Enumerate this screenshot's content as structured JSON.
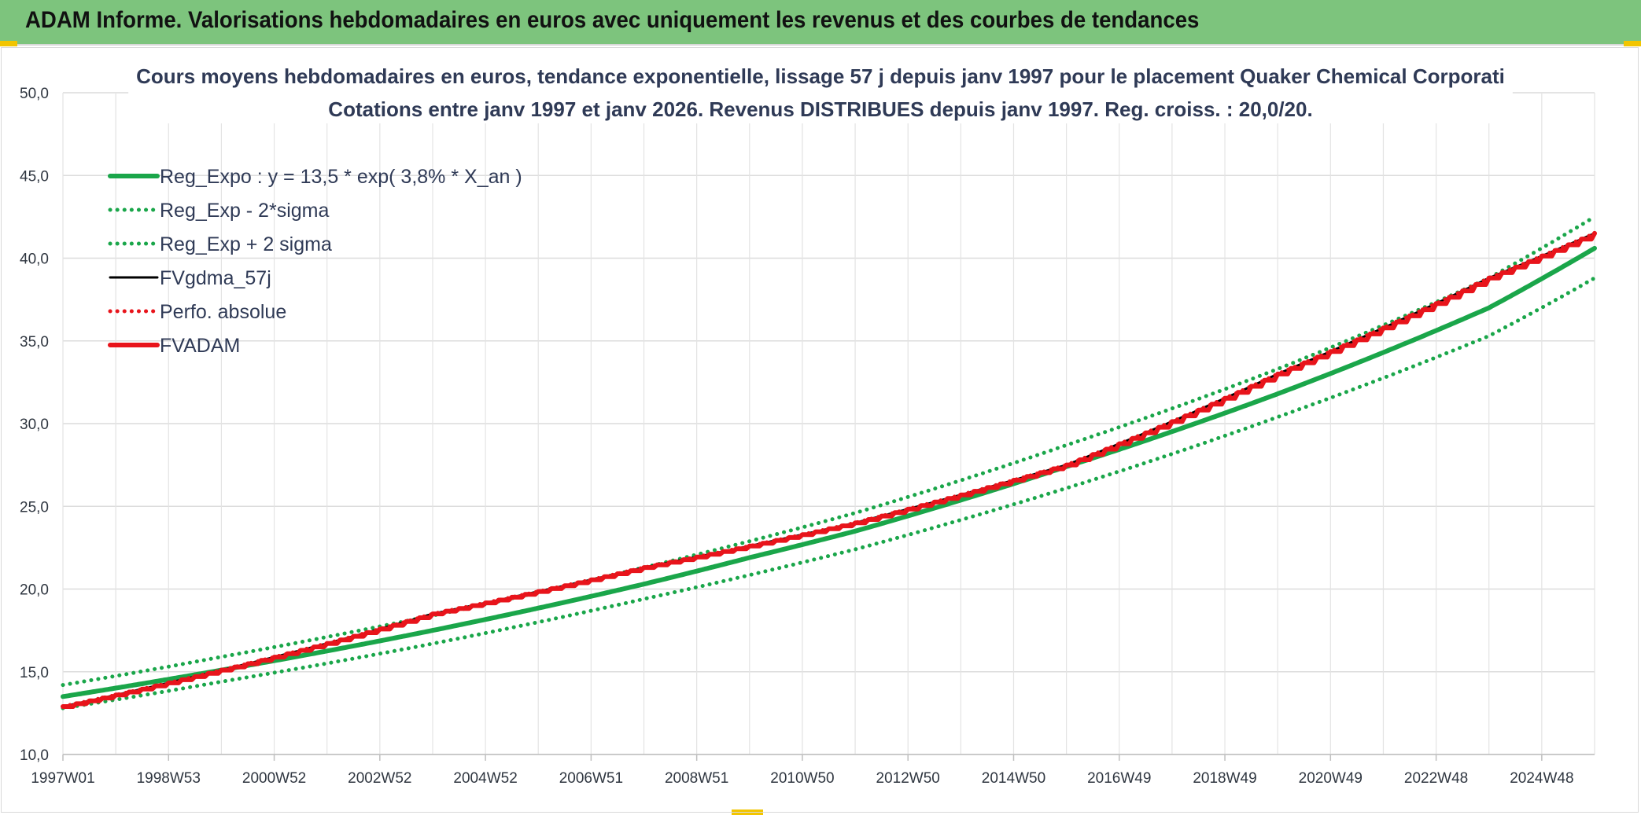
{
  "banner": {
    "title": "ADAM Informe. Valorisations hebdomadaires en euros avec uniquement les revenus et des courbes de tendances"
  },
  "colors": {
    "banner_bg": "#7dc47d",
    "regression_green": "#1aa64a",
    "fvadam_red": "#e8141b",
    "fvgdma_black": "#000000"
  },
  "chart_data": {
    "type": "line",
    "title_lines": [
      "Cours moyens hebdomadaires en euros, tendance exponentielle, lissage 57 j depuis janv 1997 pour le placement Quaker Chemical Corporati",
      "Cotations entre janv 1997 et janv 2026. Revenus DISTRIBUES depuis janv 1997. Reg. croiss. : 20,0/20."
    ],
    "x_tick_labels": [
      "1997W01",
      "1998W53",
      "2000W52",
      "2002W52",
      "2004W52",
      "2006W51",
      "2008W51",
      "2010W50",
      "2012W50",
      "2014W50",
      "2016W49",
      "2018W49",
      "2020W49",
      "2022W48",
      "2024W48"
    ],
    "x_range_years": [
      1997.0,
      2026.0
    ],
    "y_tick_labels": [
      "10,0",
      "15,0",
      "20,0",
      "25,0",
      "30,0",
      "35,0",
      "40,0",
      "45,0",
      "50,0"
    ],
    "ylim": [
      10,
      50
    ],
    "grid": true,
    "legend_position": "top-left",
    "series": [
      {
        "name": "Reg_Expo : y = 13,5 * exp( 3,8% *  X_an )",
        "style": "solid-thick",
        "color": "#1aa64a",
        "points": [
          [
            1997.0,
            13.5
          ],
          [
            2000.0,
            15.1
          ],
          [
            2004.0,
            17.5
          ],
          [
            2008.0,
            20.3
          ],
          [
            2010.0,
            21.9
          ],
          [
            2012.0,
            23.5
          ],
          [
            2016.0,
            27.4
          ],
          [
            2020.0,
            31.8
          ],
          [
            2024.0,
            37.0
          ],
          [
            2026.0,
            40.6
          ]
        ]
      },
      {
        "name": "Reg_Exp - 2*sigma",
        "style": "dotted",
        "color": "#1aa64a",
        "points": [
          [
            1997.0,
            12.8
          ],
          [
            2000.0,
            14.4
          ],
          [
            2004.0,
            16.7
          ],
          [
            2008.0,
            19.4
          ],
          [
            2012.0,
            22.4
          ],
          [
            2016.0,
            26.1
          ],
          [
            2020.0,
            30.4
          ],
          [
            2024.0,
            35.3
          ],
          [
            2026.0,
            38.8
          ]
        ]
      },
      {
        "name": "Reg_Exp + 2 sigma",
        "style": "dotted",
        "color": "#1aa64a",
        "points": [
          [
            1997.0,
            14.2
          ],
          [
            2000.0,
            15.9
          ],
          [
            2004.0,
            18.4
          ],
          [
            2008.0,
            21.3
          ],
          [
            2012.0,
            24.6
          ],
          [
            2016.0,
            28.7
          ],
          [
            2020.0,
            33.3
          ],
          [
            2024.0,
            38.8
          ],
          [
            2026.0,
            42.5
          ]
        ]
      },
      {
        "name": "FVgdma_57j",
        "style": "solid",
        "color": "#000000",
        "points": [
          [
            1997.0,
            12.9
          ],
          [
            2000.0,
            15.1
          ],
          [
            2004.0,
            18.5
          ],
          [
            2008.0,
            21.3
          ],
          [
            2010.0,
            22.6
          ],
          [
            2012.0,
            24.0
          ],
          [
            2016.0,
            27.5
          ],
          [
            2020.0,
            33.0
          ],
          [
            2024.0,
            38.8
          ],
          [
            2026.0,
            41.5
          ]
        ]
      },
      {
        "name": "Perfo. absolue",
        "style": "dotted",
        "color": "#e8141b",
        "points": [
          [
            1997.0,
            12.9
          ],
          [
            2000.0,
            15.1
          ],
          [
            2004.0,
            18.5
          ],
          [
            2008.0,
            21.3
          ],
          [
            2010.0,
            22.6
          ],
          [
            2012.0,
            24.0
          ],
          [
            2016.0,
            27.5
          ],
          [
            2020.0,
            33.0
          ],
          [
            2024.0,
            38.8
          ],
          [
            2026.0,
            41.5
          ]
        ]
      },
      {
        "name": "FVADAM",
        "style": "solid-thick-stepped",
        "color": "#e8141b",
        "points": [
          [
            1997.0,
            12.9
          ],
          [
            2000.0,
            15.1
          ],
          [
            2004.0,
            18.5
          ],
          [
            2008.0,
            21.3
          ],
          [
            2010.0,
            22.6
          ],
          [
            2012.0,
            24.0
          ],
          [
            2016.0,
            27.5
          ],
          [
            2020.0,
            33.0
          ],
          [
            2024.0,
            38.8
          ],
          [
            2026.0,
            41.5
          ]
        ]
      }
    ]
  }
}
